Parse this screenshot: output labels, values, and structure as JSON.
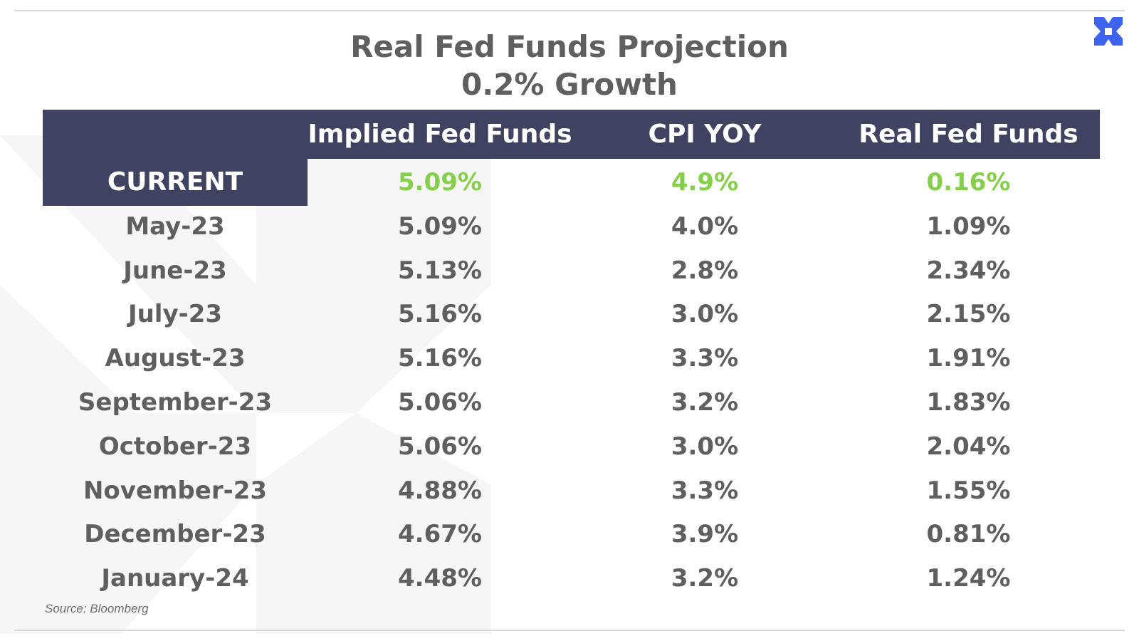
{
  "chart_data": {
    "type": "table",
    "title": "Real Fed Funds Projection",
    "subtitle": "0.2% Growth",
    "columns": [
      "",
      "Implied Fed Funds",
      "CPI YOY",
      "Real Fed Funds"
    ],
    "rows": [
      {
        "label": "CURRENT",
        "values": [
          "5.09%",
          "4.9%",
          "0.16%"
        ],
        "highlight": true
      },
      {
        "label": "May-23",
        "values": [
          "5.09%",
          "4.0%",
          "1.09%"
        ]
      },
      {
        "label": "June-23",
        "values": [
          "5.13%",
          "2.8%",
          "2.34%"
        ]
      },
      {
        "label": "July-23",
        "values": [
          "5.16%",
          "3.0%",
          "2.15%"
        ]
      },
      {
        "label": "August-23",
        "values": [
          "5.16%",
          "3.3%",
          "1.91%"
        ]
      },
      {
        "label": "September-23",
        "values": [
          "5.06%",
          "3.2%",
          "1.83%"
        ]
      },
      {
        "label": "October-23",
        "values": [
          "5.06%",
          "3.0%",
          "2.04%"
        ]
      },
      {
        "label": "November-23",
        "values": [
          "4.88%",
          "3.3%",
          "1.55%"
        ]
      },
      {
        "label": "December-23",
        "values": [
          "4.67%",
          "3.9%",
          "0.81%"
        ]
      },
      {
        "label": "January-24",
        "values": [
          "4.48%",
          "3.2%",
          "1.24%"
        ]
      }
    ],
    "source": "Source: Bloomberg"
  },
  "colors": {
    "header_bg": "#3f4260",
    "header_text": "#ffffff",
    "body_text": "#5f5f5f",
    "highlight": "#86cf4b",
    "logo": "#3d63f0",
    "watermark": "#f5f5f5"
  },
  "icons": {
    "logo": "x-logo-icon",
    "watermark": "x-watermark-icon"
  }
}
